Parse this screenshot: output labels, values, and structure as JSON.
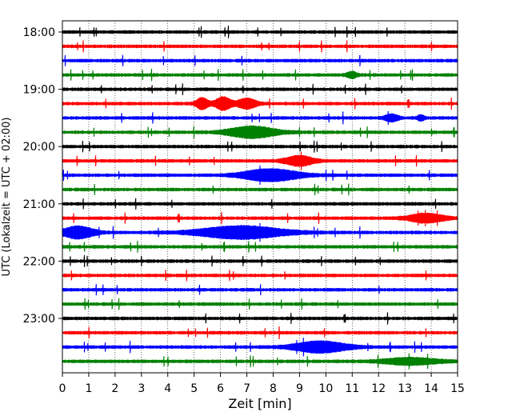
{
  "chart_data": {
    "type": "line",
    "subtype": "helicorder",
    "title": "",
    "xlabel": "Zeit  [min]",
    "ylabel": "UTC (Lokalzeit = UTC + 02:00)",
    "xlim": [
      0,
      15
    ],
    "x_ticks": [
      "0",
      "1",
      "2",
      "3",
      "4",
      "5",
      "6",
      "7",
      "8",
      "9",
      "10",
      "11",
      "12",
      "13",
      "14",
      "15"
    ],
    "y_tick_labels": [
      "18:00",
      "19:00",
      "20:00",
      "21:00",
      "22:00",
      "23:00"
    ],
    "vertical_grid": "dotted, every 1 min",
    "line_minutes": 15,
    "trace_colors": [
      "#000000",
      "#ff0000",
      "#0000ff",
      "#008000"
    ],
    "traces": [
      {
        "start": "18:00",
        "color": "#000000",
        "amplitude": 0.25,
        "bursts": []
      },
      {
        "start": "18:15",
        "color": "#ff0000",
        "amplitude": 0.25,
        "bursts": []
      },
      {
        "start": "18:30",
        "color": "#0000ff",
        "amplitude": 0.25,
        "bursts": []
      },
      {
        "start": "18:45",
        "color": "#008000",
        "amplitude": 0.25,
        "bursts": [
          {
            "min": 11.0,
            "width": 0.3,
            "amp": 0.35
          }
        ]
      },
      {
        "start": "19:00",
        "color": "#000000",
        "amplitude": 0.25,
        "bursts": []
      },
      {
        "start": "19:15",
        "color": "#ff0000",
        "amplitude": 0.25,
        "bursts": [
          {
            "min": 5.3,
            "width": 0.35,
            "amp": 0.7
          },
          {
            "min": 6.1,
            "width": 0.45,
            "amp": 0.8
          },
          {
            "min": 7.0,
            "width": 0.55,
            "amp": 0.6
          }
        ]
      },
      {
        "start": "19:30",
        "color": "#0000ff",
        "amplitude": 0.25,
        "bursts": [
          {
            "min": 12.5,
            "width": 0.4,
            "amp": 0.4
          },
          {
            "min": 13.6,
            "width": 0.2,
            "amp": 0.3
          }
        ]
      },
      {
        "start": "19:45",
        "color": "#008000",
        "amplitude": 0.25,
        "bursts": [
          {
            "min": 7.2,
            "width": 1.4,
            "amp": 0.7
          }
        ]
      },
      {
        "start": "20:00",
        "color": "#000000",
        "amplitude": 0.25,
        "bursts": []
      },
      {
        "start": "20:15",
        "color": "#ff0000",
        "amplitude": 0.25,
        "bursts": [
          {
            "min": 9.0,
            "width": 0.8,
            "amp": 0.6
          }
        ]
      },
      {
        "start": "20:30",
        "color": "#0000ff",
        "amplitude": 0.25,
        "bursts": [
          {
            "min": 7.9,
            "width": 1.6,
            "amp": 0.75
          }
        ]
      },
      {
        "start": "20:45",
        "color": "#008000",
        "amplitude": 0.25,
        "bursts": []
      },
      {
        "start": "21:00",
        "color": "#000000",
        "amplitude": 0.25,
        "bursts": []
      },
      {
        "start": "21:15",
        "color": "#ff0000",
        "amplitude": 0.25,
        "bursts": [
          {
            "min": 13.8,
            "width": 1.0,
            "amp": 0.55
          }
        ]
      },
      {
        "start": "21:30",
        "color": "#0000ff",
        "amplitude": 0.25,
        "bursts": [
          {
            "min": 0.6,
            "width": 0.9,
            "amp": 0.75
          },
          {
            "min": 6.8,
            "width": 2.4,
            "amp": 0.8
          }
        ]
      },
      {
        "start": "21:45",
        "color": "#008000",
        "amplitude": 0.25,
        "bursts": []
      },
      {
        "start": "22:00",
        "color": "#000000",
        "amplitude": 0.25,
        "bursts": []
      },
      {
        "start": "22:15",
        "color": "#ff0000",
        "amplitude": 0.25,
        "bursts": []
      },
      {
        "start": "22:30",
        "color": "#0000ff",
        "amplitude": 0.25,
        "bursts": []
      },
      {
        "start": "22:45",
        "color": "#008000",
        "amplitude": 0.25,
        "bursts": []
      },
      {
        "start": "23:00",
        "color": "#000000",
        "amplitude": 0.25,
        "bursts": []
      },
      {
        "start": "23:15",
        "color": "#ff0000",
        "amplitude": 0.25,
        "bursts": []
      },
      {
        "start": "23:30",
        "color": "#0000ff",
        "amplitude": 0.25,
        "bursts": [
          {
            "min": 9.8,
            "width": 1.5,
            "amp": 0.7
          }
        ]
      },
      {
        "start": "23:45",
        "color": "#008000",
        "amplitude": 0.25,
        "bursts": [
          {
            "min": 13.2,
            "width": 1.6,
            "amp": 0.4
          }
        ]
      }
    ]
  }
}
